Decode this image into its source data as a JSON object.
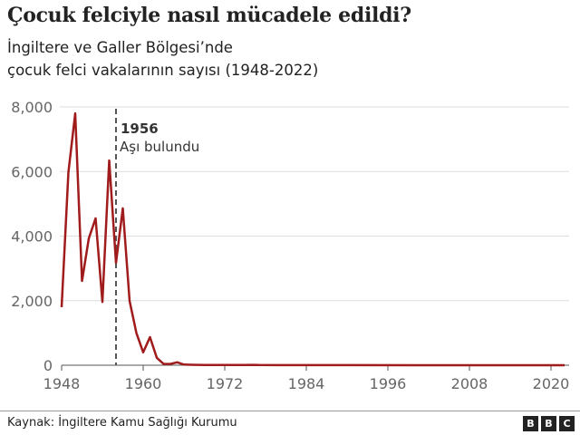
{
  "header": {
    "title": "Çocuk felciyle nasıl mücadele edildi?",
    "subtitle_line1": "İngiltere ve Galler Bölgesi’nde",
    "subtitle_line2": "çocuk felci vakalarının sayısı (1948-2022)"
  },
  "annotation": {
    "year": "1956",
    "label": "Aşı bulundu"
  },
  "footer": {
    "source": "Kaynak: İngiltere Kamu Sağlığı Kurumu",
    "logo_letters": [
      "B",
      "B",
      "C"
    ]
  },
  "colors": {
    "line": "#a01b1b",
    "grid": "#dddddd",
    "axis_text": "#666666",
    "annotation_line": "#555555"
  },
  "chart_data": {
    "type": "line",
    "title": "Çocuk felciyle nasıl mücadele edildi?",
    "subtitle": "İngiltere ve Galler Bölgesi’nde çocuk felci vakalarının sayısı (1948-2022)",
    "xlabel": "",
    "ylabel": "",
    "xlim": [
      1948,
      2022
    ],
    "ylim": [
      0,
      8000
    ],
    "x_ticks": [
      1948,
      1960,
      1972,
      1984,
      1996,
      2008,
      2020
    ],
    "y_ticks": [
      0,
      2000,
      4000,
      6000,
      8000
    ],
    "y_tick_labels": [
      "0",
      "2,000",
      "4,000",
      "6,000",
      "8,000"
    ],
    "grid": true,
    "legend": "none",
    "annotations": [
      {
        "x": 1956,
        "text": "1956 Aşı bulundu",
        "style": "dashed vertical line"
      }
    ],
    "series": [
      {
        "name": "Çocuk felci vakaları",
        "x": [
          1948,
          1949,
          1950,
          1951,
          1952,
          1953,
          1954,
          1955,
          1956,
          1957,
          1958,
          1959,
          1960,
          1961,
          1962,
          1963,
          1964,
          1965,
          1966,
          1967,
          1968,
          1969,
          1970,
          1975,
          1976,
          1977,
          1980,
          1990,
          2000,
          2010,
          2022
        ],
        "values": [
          1800,
          5980,
          7800,
          2610,
          3930,
          4550,
          1960,
          6340,
          3170,
          4860,
          1990,
          1000,
          400,
          870,
          230,
          40,
          38,
          90,
          20,
          15,
          10,
          8,
          5,
          5,
          10,
          5,
          3,
          2,
          0,
          0,
          0
        ]
      }
    ]
  }
}
